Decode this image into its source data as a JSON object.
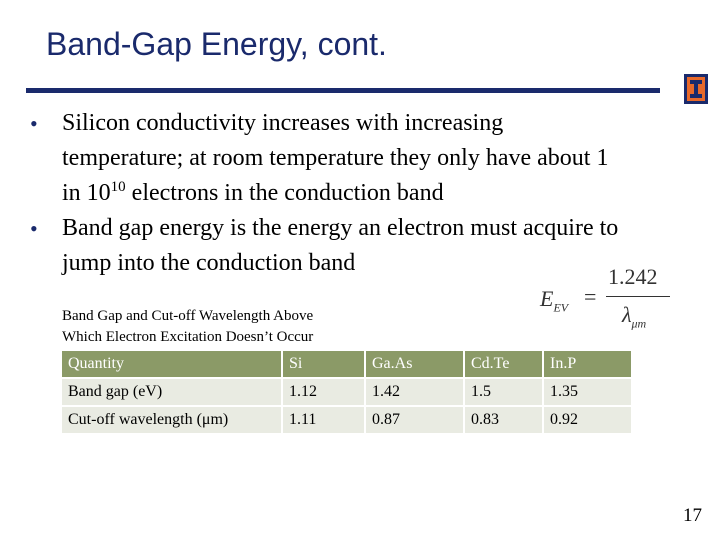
{
  "slide": {
    "title": "Band-Gap Energy, cont.",
    "bullets": [
      {
        "text_before": "Silicon conductivity increases with increasing temperature; at room temperature they only have about 1 in 10",
        "superscript": "10",
        "text_after": " electrons in the conduction band"
      },
      {
        "text": "Band gap energy is the energy an electron must acquire to jump into the conduction band"
      }
    ],
    "caption_line1": "Band Gap and Cut-off Wavelength Above",
    "caption_line2": "Which Electron Excitation Doesn’t Occur",
    "formula": {
      "lhs": "E",
      "lhs_sub": "EV",
      "equals": "=",
      "numerator": "1.242",
      "denominator": "λ",
      "denominator_sub": "μm"
    },
    "table": {
      "headers": [
        "Quantity",
        "Si",
        "Ga.As",
        "Cd.Te",
        "In.P"
      ],
      "rows": [
        [
          "Band gap (eV)",
          "1.12",
          "1.42",
          "1.5",
          "1.35"
        ],
        [
          "Cut-off wavelength (μm)",
          "1.11",
          "0.87",
          "0.83",
          "0.92"
        ]
      ]
    },
    "page_number": "17",
    "logo_icon": "university-i-logo",
    "colors": {
      "title": "#1a2a6c",
      "rule": "#1a2a6c",
      "table_header_bg": "#8b9a67",
      "table_cell_bg": "#e9ebe2",
      "logo_orange": "#e8692a"
    }
  }
}
